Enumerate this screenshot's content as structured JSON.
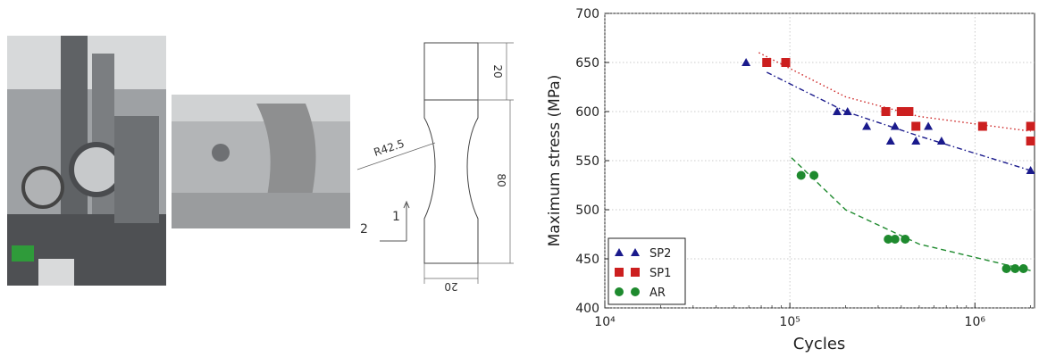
{
  "drawing": {
    "radius_label": "R42.5",
    "dim_top": "20",
    "dim_length": "80",
    "dim_width": "20",
    "axis_1": "1",
    "axis_2": "2"
  },
  "chart_data": {
    "type": "scatter",
    "xlabel": "Cycles",
    "ylabel": "Maximum stress (MPa)",
    "xscale": "log",
    "xlim": [
      10000,
      2100000
    ],
    "ylim": [
      400,
      700
    ],
    "x_ticks": [
      "10⁴",
      "10⁵",
      "10⁶"
    ],
    "x_tick_values": [
      10000,
      100000,
      1000000
    ],
    "y_ticks": [
      400,
      450,
      500,
      550,
      600,
      650,
      700
    ],
    "grid": true,
    "legend": "bottom-left",
    "series": [
      {
        "name": "SP2",
        "color": "#1a1a8c",
        "marker": "triangle",
        "points": [
          [
            58000,
            650
          ],
          [
            180000,
            600
          ],
          [
            205000,
            600
          ],
          [
            260000,
            585
          ],
          [
            350000,
            570
          ],
          [
            370000,
            585
          ],
          [
            480000,
            570
          ],
          [
            560000,
            585
          ],
          [
            660000,
            570
          ],
          [
            2000000,
            540
          ]
        ],
        "fit": [
          [
            75000,
            640
          ],
          [
            200000,
            600
          ],
          [
            500000,
            575
          ],
          [
            2000000,
            540
          ]
        ]
      },
      {
        "name": "SP1",
        "color": "#cc1f1f",
        "marker": "square",
        "points": [
          [
            75000,
            650
          ],
          [
            95000,
            650
          ],
          [
            330000,
            600
          ],
          [
            400000,
            600
          ],
          [
            440000,
            600
          ],
          [
            480000,
            585
          ],
          [
            1100000,
            585
          ],
          [
            2000000,
            585
          ],
          [
            2000000,
            570
          ]
        ],
        "fit": [
          [
            68000,
            660
          ],
          [
            200000,
            615
          ],
          [
            500000,
            595
          ],
          [
            2000000,
            580
          ]
        ]
      },
      {
        "name": "AR",
        "color": "#1e8a2e",
        "marker": "circle",
        "points": [
          [
            115000,
            535
          ],
          [
            135000,
            535
          ],
          [
            340000,
            470
          ],
          [
            370000,
            470
          ],
          [
            420000,
            470
          ],
          [
            1480000,
            440
          ],
          [
            1650000,
            440
          ],
          [
            1830000,
            440
          ]
        ],
        "fit": [
          [
            102000,
            553
          ],
          [
            200000,
            500
          ],
          [
            500000,
            465
          ],
          [
            2000000,
            438
          ]
        ]
      }
    ]
  }
}
